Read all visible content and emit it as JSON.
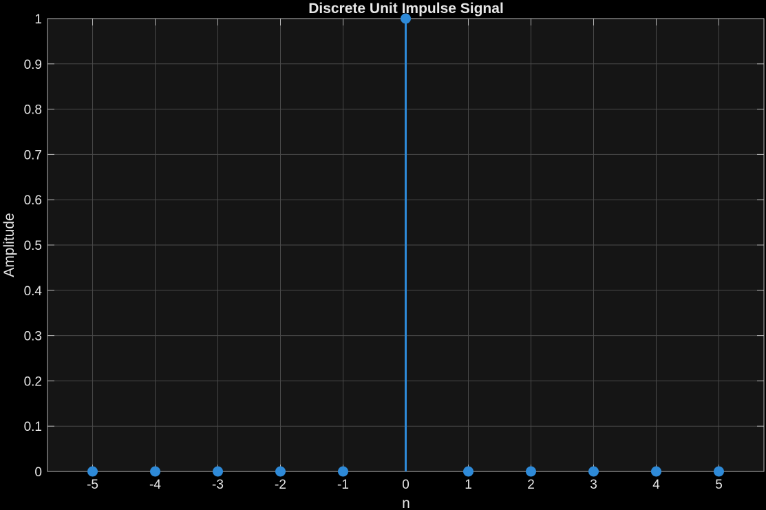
{
  "chart_data": {
    "type": "stem",
    "title": "Discrete Unit Impulse Signal",
    "xlabel": "n",
    "ylabel": "Amplitude",
    "x": [
      -5,
      -4,
      -3,
      -2,
      -1,
      0,
      1,
      2,
      3,
      4,
      5
    ],
    "y": [
      0,
      0,
      0,
      0,
      0,
      1,
      0,
      0,
      0,
      0,
      0
    ],
    "xlim": [
      -5.72,
      5.72
    ],
    "ylim": [
      0,
      1
    ],
    "xticks": [
      -5,
      -4,
      -3,
      -2,
      -1,
      0,
      1,
      2,
      3,
      4,
      5
    ],
    "xtick_labels": [
      "-5",
      "-4",
      "-3",
      "-2",
      "-1",
      "0",
      "1",
      "2",
      "3",
      "4",
      "5"
    ],
    "yticks": [
      0,
      0.1,
      0.2,
      0.3,
      0.4,
      0.5,
      0.6,
      0.7,
      0.8,
      0.9,
      1
    ],
    "ytick_labels": [
      "0",
      "0.1",
      "0.2",
      "0.3",
      "0.4",
      "0.5",
      "0.6",
      "0.7",
      "0.8",
      "0.9",
      "1"
    ],
    "grid": true,
    "colors": {
      "figure_background": "#000000",
      "axes_background": "#151515",
      "stem": "#2e8ad8",
      "grid": "#4a4a4a",
      "axis": "#b8b8b8",
      "text": "#e6e6e6"
    }
  }
}
